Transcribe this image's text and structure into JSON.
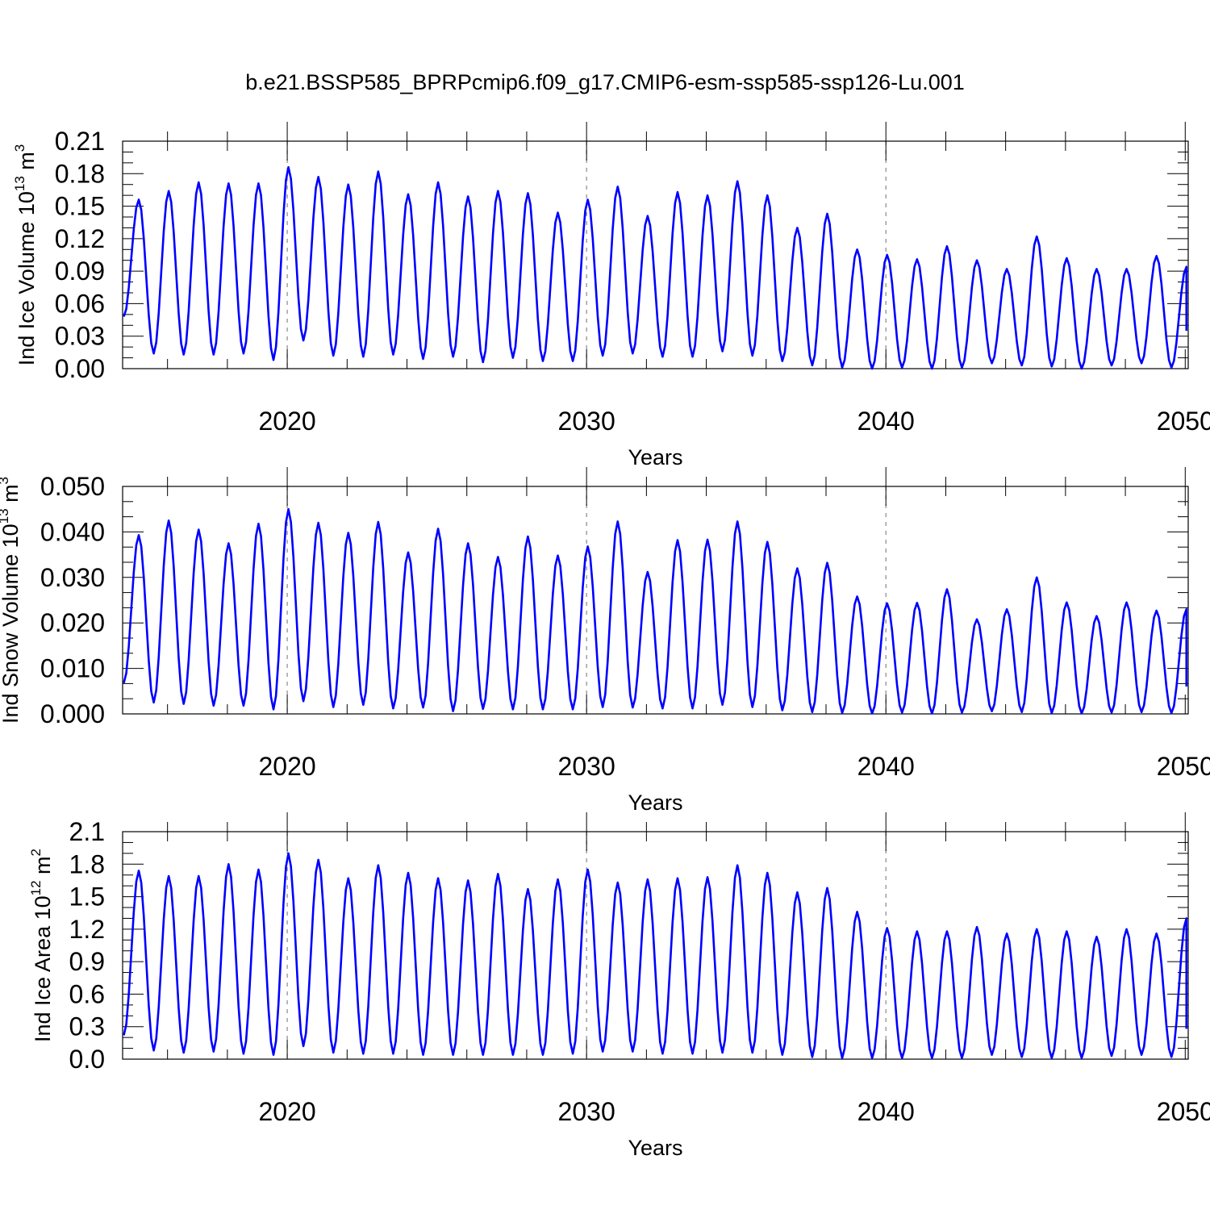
{
  "figure": {
    "title": "b.e21.BSSP585_BPRPcmip6.f09_g17.CMIP6-esm-ssp585-ssp126-Lu.001"
  },
  "colors": {
    "series": "#0000ff",
    "axis": "#000000",
    "grid": "#888888",
    "background": "#ffffff"
  },
  "chart_data": [
    {
      "type": "line",
      "id": "ice-volume",
      "title": "",
      "ylabel_main": "Ind Ice Volume 10",
      "ylabel_exp": "13",
      "ylabel_unit": " m",
      "ylabel_unit_exp": "3",
      "xlabel": "Years",
      "xlim": [
        2014.5,
        2050.1
      ],
      "ylim": [
        0,
        0.21
      ],
      "yticks": [
        0,
        0.03,
        0.06,
        0.09,
        0.12,
        0.15,
        0.18,
        0.21
      ],
      "ytick_labels": [
        "0.00",
        "0.03",
        "0.06",
        "0.09",
        "0.12",
        "0.15",
        "0.18",
        "0.21"
      ],
      "xticks": [
        2020,
        2030,
        2040,
        2050
      ],
      "xtick_labels": [
        "2020",
        "2030",
        "2040",
        "2050"
      ],
      "dashed_grid_x": [
        2020,
        2030,
        2040
      ],
      "peaks": [
        0.156,
        0.164,
        0.172,
        0.171,
        0.171,
        0.186,
        0.177,
        0.17,
        0.182,
        0.161,
        0.172,
        0.159,
        0.164,
        0.162,
        0.144,
        0.156,
        0.168,
        0.141,
        0.163,
        0.16,
        0.173,
        0.16,
        0.13,
        0.143,
        0.11,
        0.105,
        0.101,
        0.113,
        0.1,
        0.092,
        0.122,
        0.102,
        0.092,
        0.092,
        0.104,
        0.094,
        0.095
      ],
      "troughs": [
        0.048,
        0.014,
        0.013,
        0.013,
        0.014,
        0.008,
        0.026,
        0.012,
        0.011,
        0.013,
        0.009,
        0.011,
        0.006,
        0.01,
        0.007,
        0.007,
        0.012,
        0.014,
        0.011,
        0.011,
        0.016,
        0.012,
        0.007,
        0.003,
        0.001,
        0.0,
        0.001,
        0.0,
        0.001,
        0.005,
        0.003,
        0.002,
        0.0,
        0.003,
        0.005,
        0.001,
        0.035
      ]
    },
    {
      "type": "line",
      "id": "snow-volume",
      "title": "",
      "ylabel_main": "Ind Snow Volume 10",
      "ylabel_exp": "13",
      "ylabel_unit": " m",
      "ylabel_unit_exp": "3",
      "xlabel": "Years",
      "xlim": [
        2014.5,
        2050.1
      ],
      "ylim": [
        0,
        0.05
      ],
      "yticks": [
        0,
        0.01,
        0.02,
        0.03,
        0.04,
        0.05
      ],
      "ytick_labels": [
        "0.000",
        "0.010",
        "0.020",
        "0.030",
        "0.040",
        "0.050"
      ],
      "xticks": [
        2020,
        2030,
        2040,
        2050
      ],
      "xtick_labels": [
        "2020",
        "2030",
        "2040",
        "2050"
      ],
      "dashed_grid_x": [
        2020,
        2030,
        2040
      ],
      "peaks": [
        0.0393,
        0.0425,
        0.0405,
        0.0375,
        0.0418,
        0.045,
        0.042,
        0.0398,
        0.0422,
        0.0355,
        0.0407,
        0.0375,
        0.0345,
        0.039,
        0.0348,
        0.0368,
        0.0423,
        0.0312,
        0.0382,
        0.0383,
        0.0423,
        0.0378,
        0.032,
        0.0332,
        0.0258,
        0.0243,
        0.0244,
        0.0274,
        0.0208,
        0.023,
        0.03,
        0.0245,
        0.0215,
        0.0245,
        0.0227,
        0.023,
        0.023
      ],
      "troughs": [
        0.0068,
        0.0025,
        0.0022,
        0.0018,
        0.0018,
        0.001,
        0.0028,
        0.0015,
        0.002,
        0.0012,
        0.0014,
        0.0006,
        0.0011,
        0.001,
        0.001,
        0.001,
        0.0015,
        0.0014,
        0.0012,
        0.0012,
        0.002,
        0.0015,
        0.0008,
        0.0004,
        0.0002,
        0.0001,
        0.0003,
        0.0001,
        0.0003,
        0.0006,
        0.0004,
        0.0002,
        0.0001,
        0.0003,
        0.0004,
        0.0002,
        0.006
      ]
    },
    {
      "type": "line",
      "id": "ice-area",
      "title": "",
      "ylabel_main": "Ind Ice Area 10",
      "ylabel_exp": "12",
      "ylabel_unit": " m",
      "ylabel_unit_exp": "2",
      "xlabel": "Years",
      "xlim": [
        2014.5,
        2050.1
      ],
      "ylim": [
        0,
        2.1
      ],
      "yticks": [
        0,
        0.3,
        0.6,
        0.9,
        1.2,
        1.5,
        1.8,
        2.1
      ],
      "ytick_labels": [
        "0.0",
        "0.3",
        "0.6",
        "0.9",
        "1.2",
        "1.5",
        "1.8",
        "2.1"
      ],
      "xticks": [
        2020,
        2030,
        2040,
        2050
      ],
      "xtick_labels": [
        "2020",
        "2030",
        "2040",
        "2050"
      ],
      "dashed_grid_x": [
        2020,
        2030,
        2040
      ],
      "peaks": [
        1.74,
        1.69,
        1.69,
        1.8,
        1.75,
        1.9,
        1.84,
        1.67,
        1.79,
        1.72,
        1.67,
        1.65,
        1.71,
        1.57,
        1.66,
        1.75,
        1.63,
        1.66,
        1.67,
        1.68,
        1.79,
        1.72,
        1.54,
        1.58,
        1.36,
        1.21,
        1.18,
        1.18,
        1.22,
        1.16,
        1.2,
        1.18,
        1.13,
        1.2,
        1.16,
        1.3,
        1.28
      ],
      "troughs": [
        0.22,
        0.08,
        0.06,
        0.07,
        0.05,
        0.04,
        0.12,
        0.06,
        0.05,
        0.05,
        0.04,
        0.04,
        0.04,
        0.04,
        0.04,
        0.05,
        0.07,
        0.07,
        0.05,
        0.05,
        0.06,
        0.06,
        0.04,
        0.02,
        0.01,
        0.01,
        0.01,
        0.01,
        0.01,
        0.04,
        0.02,
        0.01,
        0.01,
        0.03,
        0.04,
        0.02,
        0.28
      ]
    }
  ]
}
